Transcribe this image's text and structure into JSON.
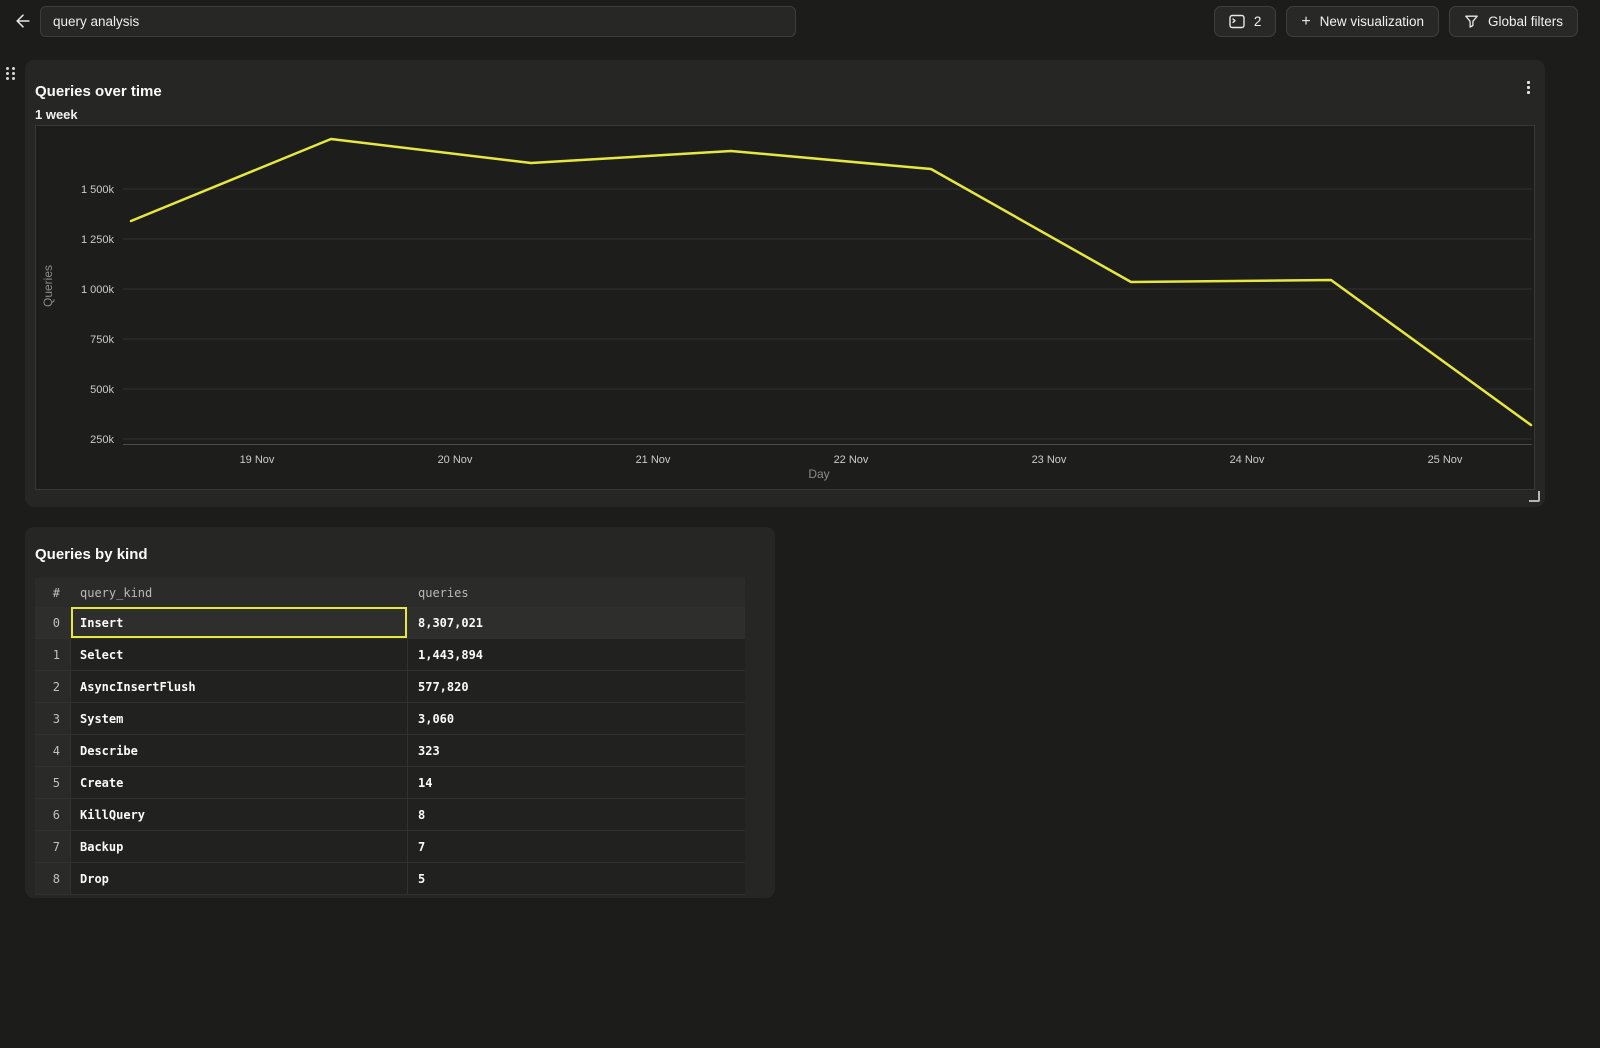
{
  "colors": {
    "accent_yellow": "#e7e83f",
    "page_background": "#1c1c1a",
    "panel_background": "#262624",
    "grid_line": "#31312f"
  },
  "topbar": {
    "back_icon": "arrow-left",
    "title_value": "query analysis",
    "tabs_count": "2",
    "tabs_button_icon": "console-window",
    "new_visualization_label": "New visualization",
    "new_visualization_icon": "plus",
    "global_filters_label": "Global filters",
    "global_filters_icon": "funnel"
  },
  "chart_panel": {
    "title": "Queries over time",
    "subtitle": "1 week",
    "menu_icon": "kebab-menu",
    "drag_handle_icon": "drag-dots",
    "resize_handle_icon": "resize-corner"
  },
  "chart_data": {
    "type": "line",
    "title": "Queries over time",
    "xlabel": "Day",
    "ylabel": "Queries",
    "legend": "none",
    "grid": true,
    "ylim": [
      225000,
      1815000
    ],
    "x_tick_labels": [
      "19 Nov",
      "20 Nov",
      "21 Nov",
      "22 Nov",
      "23 Nov",
      "24 Nov",
      "25 Nov"
    ],
    "y_tick_labels": [
      "1 500k",
      "1 250k",
      "1 000k",
      "750k",
      "500k",
      "250k"
    ],
    "y_tick_values": [
      1500000,
      1250000,
      1000000,
      750000,
      500000,
      250000
    ],
    "series": [
      {
        "name": "Queries",
        "color": "#e7e83f",
        "x": [
          "18 Nov",
          "19 Nov",
          "20 Nov",
          "21 Nov",
          "22 Nov",
          "23 Nov",
          "24 Nov",
          "25 Nov"
        ],
        "values": [
          1340000,
          1750000,
          1630000,
          1690000,
          1600000,
          1035000,
          1045000,
          320000
        ]
      }
    ]
  },
  "table_panel": {
    "title": "Queries by kind",
    "columns": [
      "#",
      "query_kind",
      "queries"
    ],
    "rows": [
      {
        "index": "0",
        "query_kind": "Insert",
        "queries": "8,307,021",
        "selected": true
      },
      {
        "index": "1",
        "query_kind": "Select",
        "queries": "1,443,894",
        "selected": false
      },
      {
        "index": "2",
        "query_kind": "AsyncInsertFlush",
        "queries": "577,820",
        "selected": false
      },
      {
        "index": "3",
        "query_kind": "System",
        "queries": "3,060",
        "selected": false
      },
      {
        "index": "4",
        "query_kind": "Describe",
        "queries": "323",
        "selected": false
      },
      {
        "index": "5",
        "query_kind": "Create",
        "queries": "14",
        "selected": false
      },
      {
        "index": "6",
        "query_kind": "KillQuery",
        "queries": "8",
        "selected": false
      },
      {
        "index": "7",
        "query_kind": "Backup",
        "queries": "7",
        "selected": false
      },
      {
        "index": "8",
        "query_kind": "Drop",
        "queries": "5",
        "selected": false
      }
    ]
  }
}
